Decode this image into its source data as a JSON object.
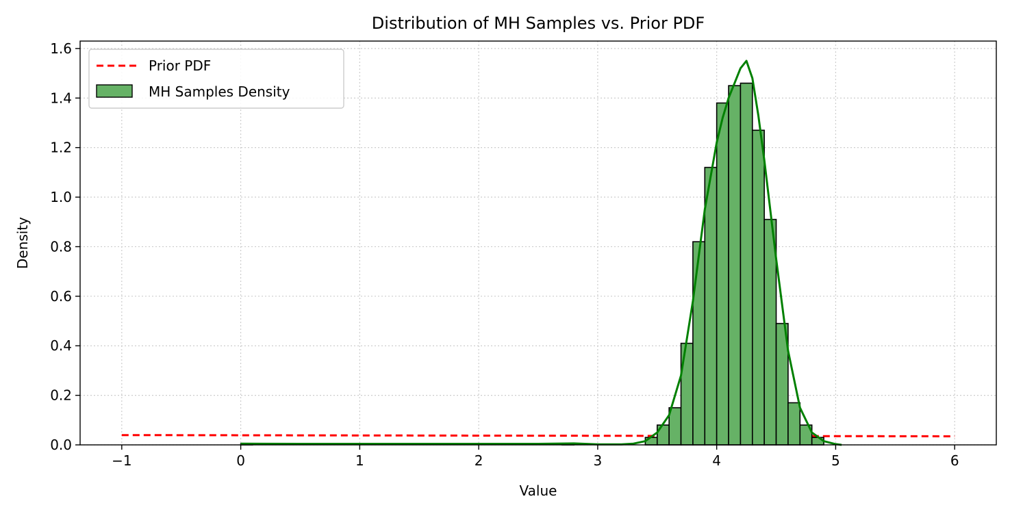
{
  "chart_data": {
    "type": "bar",
    "title": "Distribution of MH Samples vs. Prior PDF",
    "xlabel": "Value",
    "ylabel": "Density",
    "xlim": [
      -1.35,
      6.35
    ],
    "ylim": [
      0,
      1.63
    ],
    "xticks": [
      -1,
      0,
      1,
      2,
      3,
      4,
      5,
      6
    ],
    "xtick_labels": [
      "−1",
      "0",
      "1",
      "2",
      "3",
      "4",
      "5",
      "6"
    ],
    "yticks": [
      0.0,
      0.2,
      0.4,
      0.6,
      0.8,
      1.0,
      1.2,
      1.4,
      1.6
    ],
    "ytick_labels": [
      "0.0",
      "0.2",
      "0.4",
      "0.6",
      "0.8",
      "1.0",
      "1.2",
      "1.4",
      "1.6"
    ],
    "grid": true,
    "legend_position": "upper-left",
    "colors": {
      "hist_fill": "#66b266",
      "hist_edge": "#000000",
      "kde_line": "#008000",
      "prior_line": "#ff0000",
      "grid": "#cccccc"
    },
    "series": [
      {
        "name": "Prior PDF",
        "kind": "line",
        "style": "dashed",
        "x": [
          -1.0,
          0.0,
          1.0,
          2.0,
          3.0,
          4.0,
          5.0,
          6.0
        ],
        "y": [
          0.0395,
          0.0388,
          0.0381,
          0.0374,
          0.0367,
          0.036,
          0.0353,
          0.0346
        ]
      },
      {
        "name": "MH Samples Density",
        "kind": "histogram",
        "bin_width": 0.1,
        "bin_left_edges": [
          0.0,
          2.7,
          3.4,
          3.5,
          3.6,
          3.7,
          3.8,
          3.9,
          4.0,
          4.1,
          4.2,
          4.3,
          4.4,
          4.5,
          4.6,
          4.7,
          4.8
        ],
        "values": [
          0.005,
          0.005,
          0.03,
          0.08,
          0.15,
          0.41,
          0.82,
          1.12,
          1.38,
          1.45,
          1.46,
          1.27,
          0.91,
          0.49,
          0.17,
          0.08,
          0.03
        ]
      },
      {
        "kind": "kde-line",
        "x": [
          0.0,
          0.5,
          1.0,
          1.5,
          2.0,
          2.5,
          2.8,
          3.0,
          3.2,
          3.3,
          3.4,
          3.5,
          3.6,
          3.7,
          3.8,
          3.9,
          4.0,
          4.05,
          4.1,
          4.15,
          4.2,
          4.25,
          4.3,
          4.35,
          4.4,
          4.5,
          4.6,
          4.7,
          4.8,
          4.9,
          5.0,
          5.05
        ],
        "y": [
          0.005,
          0.004,
          0.004,
          0.004,
          0.004,
          0.004,
          0.006,
          0.002,
          0.002,
          0.005,
          0.015,
          0.05,
          0.12,
          0.28,
          0.58,
          0.95,
          1.22,
          1.32,
          1.4,
          1.46,
          1.52,
          1.55,
          1.48,
          1.33,
          1.15,
          0.75,
          0.38,
          0.15,
          0.05,
          0.015,
          0.003,
          0.0
        ]
      }
    ]
  }
}
